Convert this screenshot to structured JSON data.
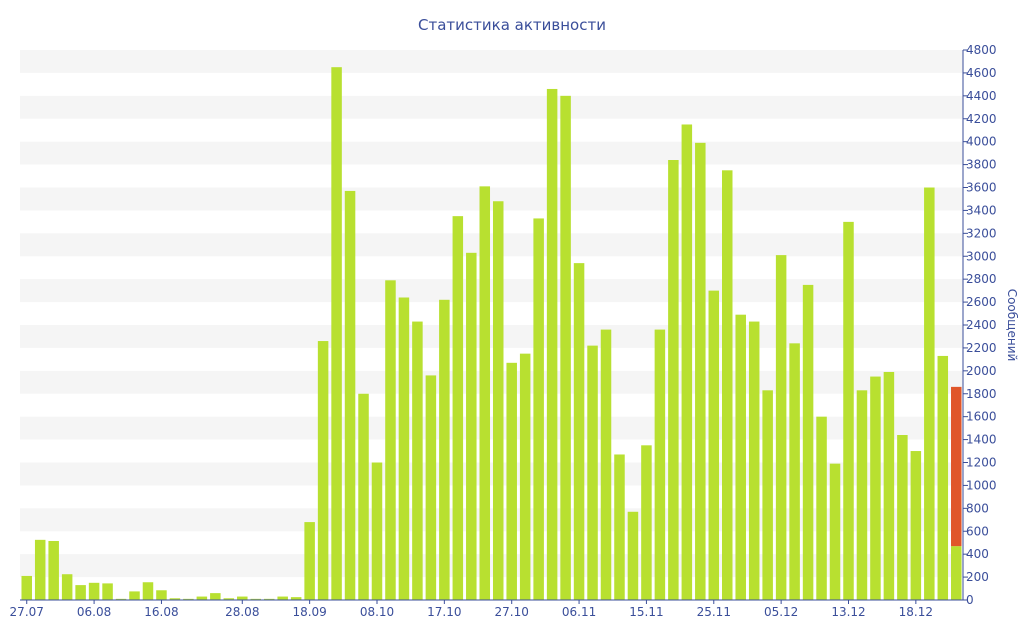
{
  "chart_data": {
    "type": "bar",
    "title": "Статистика активности",
    "ylabel": "Сообщений",
    "xlabel": "",
    "ylim": [
      0,
      4800
    ],
    "yticks": [
      0,
      200,
      400,
      600,
      800,
      1000,
      1200,
      1400,
      1600,
      1800,
      2000,
      2200,
      2400,
      2600,
      2800,
      3000,
      3200,
      3400,
      3600,
      3800,
      4000,
      4200,
      4400,
      4600,
      4800
    ],
    "x_tick_labels": [
      {
        "index": 0,
        "label": "27.07"
      },
      {
        "index": 5,
        "label": "06.08"
      },
      {
        "index": 10,
        "label": "16.08"
      },
      {
        "index": 16,
        "label": "28.08"
      },
      {
        "index": 21,
        "label": "18.09"
      },
      {
        "index": 26,
        "label": "08.10"
      },
      {
        "index": 31,
        "label": "17.10"
      },
      {
        "index": 36,
        "label": "27.10"
      },
      {
        "index": 41,
        "label": "06.11"
      },
      {
        "index": 46,
        "label": "15.11"
      },
      {
        "index": 51,
        "label": "25.11"
      },
      {
        "index": 56,
        "label": "05.12"
      },
      {
        "index": 61,
        "label": "13.12"
      },
      {
        "index": 66,
        "label": "18.12"
      }
    ],
    "grid": "horizontal-bands",
    "series": [
      {
        "color": "#b8e030",
        "values": [
          210,
          525,
          515,
          225,
          130,
          150,
          145,
          10,
          75,
          155,
          85,
          15,
          10,
          30,
          60,
          15,
          30,
          10,
          10,
          30,
          25,
          680,
          2260,
          4650,
          3570,
          1800,
          1200,
          2790,
          2640,
          2430,
          1960,
          2620,
          3350,
          3030,
          3610,
          3480,
          2070,
          2150,
          3330,
          4460,
          4400,
          2940,
          2220,
          2360,
          1270,
          770,
          1350,
          2360,
          3840,
          4150,
          3990,
          2700,
          3750,
          2490,
          2430,
          1830,
          3010,
          2240,
          2750,
          1600,
          1190,
          3300,
          1830,
          1950,
          1990,
          1440,
          1300,
          3600,
          2130,
          470
        ]
      },
      {
        "color": "#e0562a",
        "values": [
          0,
          0,
          0,
          0,
          0,
          0,
          0,
          0,
          0,
          0,
          0,
          0,
          0,
          0,
          0,
          0,
          0,
          0,
          0,
          0,
          0,
          0,
          0,
          0,
          0,
          0,
          0,
          0,
          0,
          0,
          0,
          0,
          0,
          0,
          0,
          0,
          0,
          0,
          0,
          0,
          0,
          0,
          0,
          0,
          0,
          0,
          0,
          0,
          0,
          0,
          0,
          0,
          0,
          0,
          0,
          0,
          0,
          0,
          0,
          0,
          0,
          0,
          0,
          0,
          0,
          0,
          0,
          0,
          0,
          1390
        ]
      }
    ],
    "stacked": true
  },
  "colors": {
    "axis_text": "#3a4e9a",
    "band": "#f5f5f5",
    "axis_line": "#3a4e9a"
  }
}
